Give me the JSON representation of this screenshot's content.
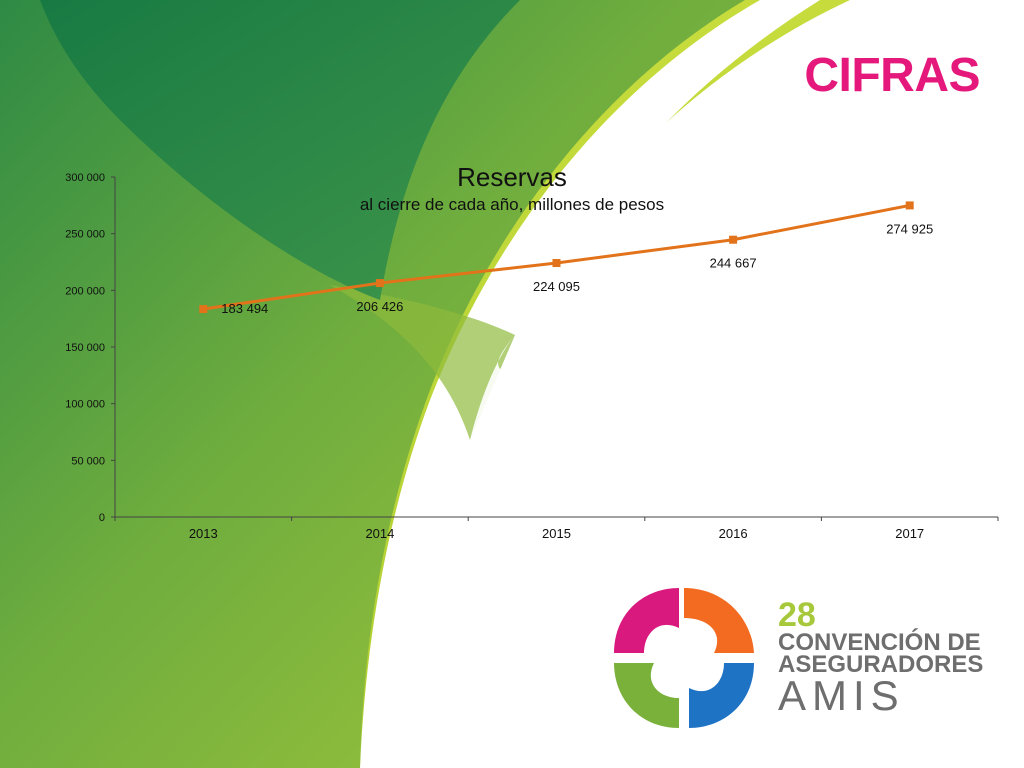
{
  "slide": {
    "title": "CIFRAS",
    "title_color": "#e4197b"
  },
  "colors": {
    "bg_dark_green": "#1d7d42",
    "bg_mid_green": "#6fad3e",
    "bg_light_green": "#b8d431",
    "line_orange": "#e2731a",
    "text_gray": "#6e6e6e",
    "brand_green": "#a6c83a"
  },
  "chart_data": {
    "type": "line",
    "title": "Reservas",
    "subtitle": "al cierre de cada año, millones de pesos",
    "categories": [
      "2013",
      "2014",
      "2015",
      "2016",
      "2017"
    ],
    "series": [
      {
        "values": [
          183494,
          206426,
          224095,
          244667,
          274925
        ],
        "data_labels": [
          "183 494",
          "206 426",
          "224 095",
          "244 667",
          "274 925"
        ],
        "color": "#e2731a",
        "marker": "square"
      }
    ],
    "ylim": [
      0,
      300000
    ],
    "yticks": [
      0,
      50000,
      100000,
      150000,
      200000,
      250000,
      300000
    ],
    "ytick_labels": [
      "0",
      "50 000",
      "100 000",
      "150 000",
      "200 000",
      "250 000",
      "300 000"
    ],
    "xlabel": "",
    "ylabel": "",
    "grid": false,
    "legend": "none"
  },
  "brand": {
    "number": "28",
    "line1": "CONVENCIÓN DE",
    "line2": "ASEGURADORES",
    "line3": "AMIS",
    "logo_icon": "pinwheel-logo-icon"
  }
}
